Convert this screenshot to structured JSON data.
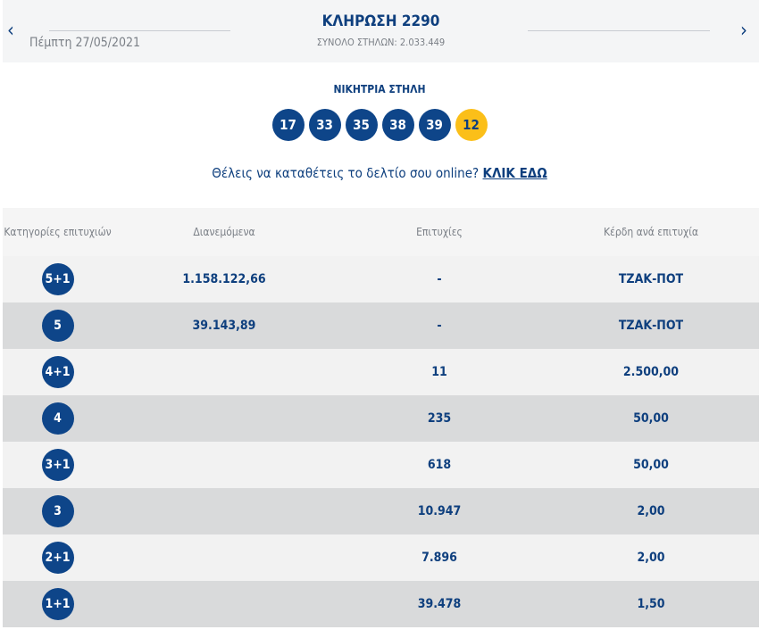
{
  "header": {
    "title": "ΚΛΗΡΩΣΗ 2290",
    "date": "Πέμπτη 27/05/2021",
    "total": "ΣΥΝΟΛΟ ΣΤΗΛΩΝ: 2.033.449",
    "prev_icon": "chevron-left-icon",
    "next_icon": "chevron-right-icon",
    "prev": "‹",
    "next": "›"
  },
  "winning": {
    "title": "ΝΙΚΗΤΡΙΑ ΣΤΗΛΗ",
    "numbers": [
      "17",
      "33",
      "35",
      "38",
      "39"
    ],
    "joker": "12"
  },
  "online": {
    "text": "Θέλεις να καταθέτεις το δελτίο σου online? ",
    "link": "ΚΛΙΚ ΕΔΩ"
  },
  "table": {
    "headers": [
      "Κατηγορίες επιτυχιών",
      "Διανεμόμενα",
      "Επιτυχίες",
      "Κέρδη ανά επιτυχία"
    ],
    "rows": [
      {
        "cat": "5+1",
        "dist": "1.158.122,66",
        "wins": "-",
        "prize": "ΤΖΑΚ-ΠΟΤ"
      },
      {
        "cat": "5",
        "dist": "39.143,89",
        "wins": "-",
        "prize": "ΤΖΑΚ-ΠΟΤ"
      },
      {
        "cat": "4+1",
        "dist": "",
        "wins": "11",
        "prize": "2.500,00"
      },
      {
        "cat": "4",
        "dist": "",
        "wins": "235",
        "prize": "50,00"
      },
      {
        "cat": "3+1",
        "dist": "",
        "wins": "618",
        "prize": "50,00"
      },
      {
        "cat": "3",
        "dist": "",
        "wins": "10.947",
        "prize": "2,00"
      },
      {
        "cat": "2+1",
        "dist": "",
        "wins": "7.896",
        "prize": "2,00"
      },
      {
        "cat": "1+1",
        "dist": "",
        "wins": "39.478",
        "prize": "1,50"
      }
    ]
  },
  "colors": {
    "primary": "#0e4589",
    "joker": "#fbbf19"
  }
}
